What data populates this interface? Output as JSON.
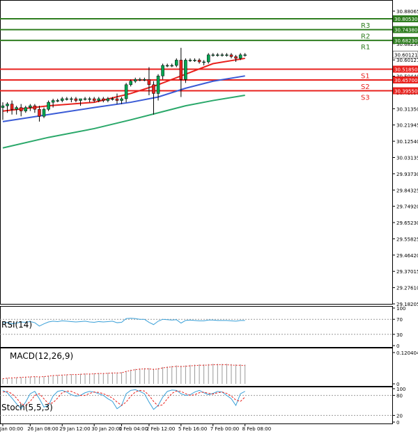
{
  "price_axis": {
    "ticks": [
      "30.88065",
      "30.78680",
      "30.68230",
      "30.60121",
      "30.50440",
      "30.41090",
      "30.31350",
      "30.21945",
      "30.12540",
      "30.03135",
      "29.93730",
      "29.84325",
      "29.74920",
      "29.65230",
      "29.55825",
      "29.46420",
      "29.37015",
      "29.27610",
      "29.18205"
    ],
    "current_price": "30.60121"
  },
  "pivots": [
    {
      "label": "R3",
      "value": "30.80530",
      "color": "#2e7d1f"
    },
    {
      "label": "R2",
      "value": "30.74380",
      "color": "#2e7d1f"
    },
    {
      "label": "R1",
      "value": "30.68230",
      "color": "#2e7d1f"
    },
    {
      "label": "S1",
      "value": "30.51850",
      "color": "#e8211d"
    },
    {
      "label": "S2",
      "value": "30.45700",
      "color": "#e8211d"
    },
    {
      "label": "S3",
      "value": "30.39550",
      "color": "#e8211d"
    }
  ],
  "time_axis": {
    "labels": [
      "Jan 00:00",
      "26 Jan 08:00",
      "29 Jan 12:00",
      "30 Jan 20:00",
      "1 Feb 04:00",
      "2 Feb 12:00",
      "5 Feb 16:00",
      "7 Feb 00:00",
      "8 Feb 08:00"
    ]
  },
  "rsi": {
    "title": "RSI(14)",
    "ticks": [
      "100",
      "70",
      "30",
      "0"
    ]
  },
  "macd": {
    "title": "MACD(12,26,9)",
    "ticks": [
      "0.120404",
      "0"
    ]
  },
  "stoch": {
    "title": "Stoch(5,5,3)",
    "ticks": [
      "100",
      "80",
      "20",
      "0"
    ]
  },
  "colors": {
    "bull_candle": "#00a651",
    "bear_candle": "#e8211d",
    "ma_fast": "#e8211d",
    "ma_mid": "#3a5bd6",
    "ma_slow": "#2aa86a",
    "rsi_line": "#3aa0d8",
    "stoch_main": "#3aa0d8",
    "stoch_signal": "#e8211d",
    "grid": "#000000"
  },
  "chart_data": {
    "type": "candlestick",
    "series": [
      {
        "name": "price",
        "points": [
          {
            "t": 0,
            "o": 30.3,
            "h": 30.33,
            "l": 30.23,
            "c": 30.31
          },
          {
            "t": 1,
            "o": 30.31,
            "h": 30.33,
            "l": 30.27,
            "c": 30.32
          },
          {
            "t": 2,
            "o": 30.32,
            "h": 30.34,
            "l": 30.26,
            "c": 30.29
          },
          {
            "t": 3,
            "o": 30.29,
            "h": 30.31,
            "l": 30.26,
            "c": 30.3
          },
          {
            "t": 4,
            "o": 30.3,
            "h": 30.32,
            "l": 30.25,
            "c": 30.28
          },
          {
            "t": 5,
            "o": 30.28,
            "h": 30.31,
            "l": 30.27,
            "c": 30.3
          },
          {
            "t": 6,
            "o": 30.3,
            "h": 30.32,
            "l": 30.28,
            "c": 30.31
          },
          {
            "t": 7,
            "o": 30.31,
            "h": 30.32,
            "l": 30.27,
            "c": 30.29
          },
          {
            "t": 8,
            "o": 30.29,
            "h": 30.31,
            "l": 30.22,
            "c": 30.25
          },
          {
            "t": 9,
            "o": 30.25,
            "h": 30.3,
            "l": 30.24,
            "c": 30.29
          },
          {
            "t": 10,
            "o": 30.29,
            "h": 30.34,
            "l": 30.28,
            "c": 30.33
          },
          {
            "t": 11,
            "o": 30.33,
            "h": 30.35,
            "l": 30.3,
            "c": 30.34
          },
          {
            "t": 12,
            "o": 30.34,
            "h": 30.35,
            "l": 30.33,
            "c": 30.34
          },
          {
            "t": 13,
            "o": 30.34,
            "h": 30.36,
            "l": 30.33,
            "c": 30.35
          },
          {
            "t": 14,
            "o": 30.35,
            "h": 30.36,
            "l": 30.34,
            "c": 30.35
          },
          {
            "t": 15,
            "o": 30.35,
            "h": 30.36,
            "l": 30.33,
            "c": 30.35
          },
          {
            "t": 16,
            "o": 30.35,
            "h": 30.36,
            "l": 30.33,
            "c": 30.34
          },
          {
            "t": 17,
            "o": 30.34,
            "h": 30.35,
            "l": 30.31,
            "c": 30.35
          },
          {
            "t": 18,
            "o": 30.35,
            "h": 30.36,
            "l": 30.34,
            "c": 30.35
          },
          {
            "t": 19,
            "o": 30.35,
            "h": 30.36,
            "l": 30.33,
            "c": 30.35
          },
          {
            "t": 20,
            "o": 30.35,
            "h": 30.36,
            "l": 30.33,
            "c": 30.34
          },
          {
            "t": 21,
            "o": 30.34,
            "h": 30.36,
            "l": 30.33,
            "c": 30.35
          },
          {
            "t": 22,
            "o": 30.35,
            "h": 30.36,
            "l": 30.33,
            "c": 30.34
          },
          {
            "t": 23,
            "o": 30.34,
            "h": 30.36,
            "l": 30.33,
            "c": 30.35
          },
          {
            "t": 24,
            "o": 30.35,
            "h": 30.36,
            "l": 30.34,
            "c": 30.35
          },
          {
            "t": 25,
            "o": 30.35,
            "h": 30.38,
            "l": 30.32,
            "c": 30.34
          },
          {
            "t": 26,
            "o": 30.34,
            "h": 30.36,
            "l": 30.32,
            "c": 30.35
          },
          {
            "t": 27,
            "o": 30.35,
            "h": 30.44,
            "l": 30.33,
            "c": 30.43
          },
          {
            "t": 28,
            "o": 30.43,
            "h": 30.46,
            "l": 30.42,
            "c": 30.45
          },
          {
            "t": 29,
            "o": 30.45,
            "h": 30.47,
            "l": 30.44,
            "c": 30.46
          },
          {
            "t": 30,
            "o": 30.46,
            "h": 30.47,
            "l": 30.45,
            "c": 30.46
          },
          {
            "t": 31,
            "o": 30.46,
            "h": 30.47,
            "l": 30.45,
            "c": 30.46
          },
          {
            "t": 32,
            "o": 30.46,
            "h": 30.53,
            "l": 30.37,
            "c": 30.43
          },
          {
            "t": 33,
            "o": 30.43,
            "h": 30.45,
            "l": 30.26,
            "c": 30.38
          },
          {
            "t": 34,
            "o": 30.38,
            "h": 30.49,
            "l": 30.34,
            "c": 30.48
          },
          {
            "t": 35,
            "o": 30.48,
            "h": 30.55,
            "l": 30.46,
            "c": 30.54
          },
          {
            "t": 36,
            "o": 30.54,
            "h": 30.55,
            "l": 30.53,
            "c": 30.54
          },
          {
            "t": 37,
            "o": 30.54,
            "h": 30.55,
            "l": 30.53,
            "c": 30.54
          },
          {
            "t": 38,
            "o": 30.54,
            "h": 30.58,
            "l": 30.53,
            "c": 30.57
          },
          {
            "t": 39,
            "o": 30.57,
            "h": 30.64,
            "l": 30.36,
            "c": 30.46
          },
          {
            "t": 40,
            "o": 30.46,
            "h": 30.58,
            "l": 30.44,
            "c": 30.57
          },
          {
            "t": 41,
            "o": 30.57,
            "h": 30.58,
            "l": 30.56,
            "c": 30.57
          },
          {
            "t": 42,
            "o": 30.57,
            "h": 30.58,
            "l": 30.56,
            "c": 30.57
          },
          {
            "t": 43,
            "o": 30.57,
            "h": 30.58,
            "l": 30.55,
            "c": 30.56
          },
          {
            "t": 44,
            "o": 30.56,
            "h": 30.57,
            "l": 30.54,
            "c": 30.56
          },
          {
            "t": 45,
            "o": 30.56,
            "h": 30.61,
            "l": 30.55,
            "c": 30.6
          },
          {
            "t": 46,
            "o": 30.6,
            "h": 30.61,
            "l": 30.59,
            "c": 30.6
          },
          {
            "t": 47,
            "o": 30.6,
            "h": 30.61,
            "l": 30.59,
            "c": 30.6
          },
          {
            "t": 48,
            "o": 30.6,
            "h": 30.61,
            "l": 30.59,
            "c": 30.6
          },
          {
            "t": 49,
            "o": 30.6,
            "h": 30.61,
            "l": 30.59,
            "c": 30.6
          },
          {
            "t": 50,
            "o": 30.6,
            "h": 30.61,
            "l": 30.58,
            "c": 30.59
          },
          {
            "t": 51,
            "o": 30.59,
            "h": 30.6,
            "l": 30.56,
            "c": 30.58
          },
          {
            "t": 52,
            "o": 30.58,
            "h": 30.61,
            "l": 30.57,
            "c": 30.6
          },
          {
            "t": 53,
            "o": 30.6,
            "h": 30.61,
            "l": 30.59,
            "c": 30.6
          }
        ]
      }
    ],
    "moving_averages": [
      {
        "color": "red",
        "points": [
          [
            0,
            30.28
          ],
          [
            10,
            30.31
          ],
          [
            20,
            30.33
          ],
          [
            28,
            30.38
          ],
          [
            34,
            30.43
          ],
          [
            40,
            30.49
          ],
          [
            46,
            30.55
          ],
          [
            53,
            30.58
          ]
        ]
      },
      {
        "color": "blue",
        "points": [
          [
            0,
            30.22
          ],
          [
            10,
            30.26
          ],
          [
            20,
            30.3
          ],
          [
            28,
            30.33
          ],
          [
            34,
            30.36
          ],
          [
            40,
            30.41
          ],
          [
            46,
            30.45
          ],
          [
            53,
            30.48
          ]
        ]
      },
      {
        "color": "green",
        "points": [
          [
            0,
            30.07
          ],
          [
            10,
            30.13
          ],
          [
            20,
            30.18
          ],
          [
            28,
            30.23
          ],
          [
            34,
            30.27
          ],
          [
            40,
            30.31
          ],
          [
            46,
            30.34
          ],
          [
            53,
            30.37
          ]
        ]
      }
    ],
    "ylim": [
      29.18205,
      30.88065
    ],
    "x_tick_indices": [
      0,
      6,
      13,
      20,
      26,
      32,
      39,
      46,
      53
    ],
    "pivot_levels": {
      "R3": 30.8053,
      "R2": 30.7438,
      "R1": 30.6823,
      "S1": 30.5185,
      "S2": 30.457,
      "S3": 30.3955
    },
    "last_price": 30.60121,
    "rsi": {
      "ylim": [
        0,
        100
      ],
      "levels": [
        70,
        30
      ],
      "values": [
        60,
        62,
        58,
        60,
        63,
        62,
        64,
        61,
        52,
        58,
        63,
        65,
        64,
        66,
        65,
        64,
        63,
        64,
        65,
        63,
        62,
        64,
        63,
        64,
        65,
        61,
        62,
        72,
        73,
        72,
        70,
        70,
        62,
        56,
        65,
        70,
        69,
        68,
        69,
        60,
        67,
        68,
        67,
        66,
        66,
        68,
        68,
        67,
        67,
        67,
        66,
        65,
        67,
        67
      ]
    },
    "macd": {
      "ylim": [
        0,
        0.120404
      ],
      "values": [
        0.02,
        0.022,
        0.023,
        0.024,
        0.025,
        0.026,
        0.027,
        0.028,
        0.027,
        0.028,
        0.03,
        0.032,
        0.033,
        0.034,
        0.035,
        0.036,
        0.036,
        0.037,
        0.038,
        0.038,
        0.039,
        0.04,
        0.04,
        0.041,
        0.042,
        0.042,
        0.043,
        0.048,
        0.052,
        0.055,
        0.057,
        0.058,
        0.058,
        0.056,
        0.058,
        0.062,
        0.064,
        0.066,
        0.068,
        0.067,
        0.068,
        0.07,
        0.071,
        0.072,
        0.072,
        0.073,
        0.074,
        0.074,
        0.074,
        0.074,
        0.073,
        0.072,
        0.072,
        0.071
      ]
    },
    "stoch": {
      "ylim": [
        0,
        100
      ],
      "levels": [
        80,
        20
      ],
      "main": [
        95,
        88,
        72,
        55,
        40,
        60,
        85,
        92,
        70,
        45,
        50,
        78,
        92,
        95,
        90,
        82,
        78,
        80,
        88,
        92,
        90,
        85,
        80,
        70,
        62,
        40,
        50,
        85,
        95,
        97,
        92,
        85,
        60,
        38,
        50,
        75,
        92,
        96,
        95,
        85,
        80,
        82,
        90,
        95,
        88,
        82,
        86,
        92,
        90,
        80,
        70,
        50,
        85,
        92
      ],
      "signal": [
        90,
        92,
        85,
        72,
        55,
        50,
        62,
        80,
        85,
        70,
        55,
        58,
        72,
        88,
        93,
        92,
        86,
        80,
        80,
        86,
        90,
        89,
        85,
        79,
        72,
        60,
        50,
        60,
        78,
        90,
        95,
        93,
        80,
        62,
        48,
        52,
        70,
        86,
        93,
        92,
        85,
        80,
        82,
        88,
        90,
        86,
        84,
        88,
        90,
        86,
        78,
        66,
        62,
        75
      ]
    }
  }
}
